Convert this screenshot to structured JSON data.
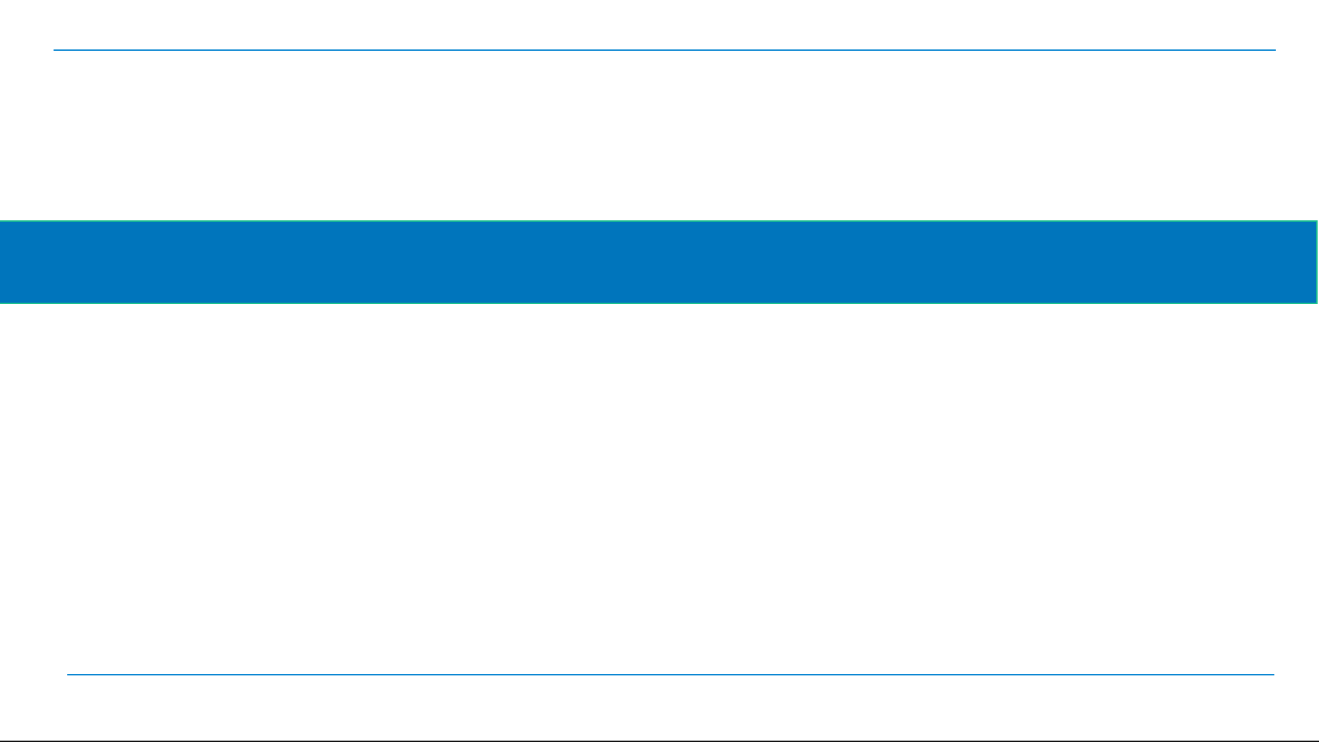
{
  "slide": {
    "colors": {
      "band": "#0075bc",
      "band_border": "#1cc18f",
      "rule": "#0a86d2"
    }
  }
}
